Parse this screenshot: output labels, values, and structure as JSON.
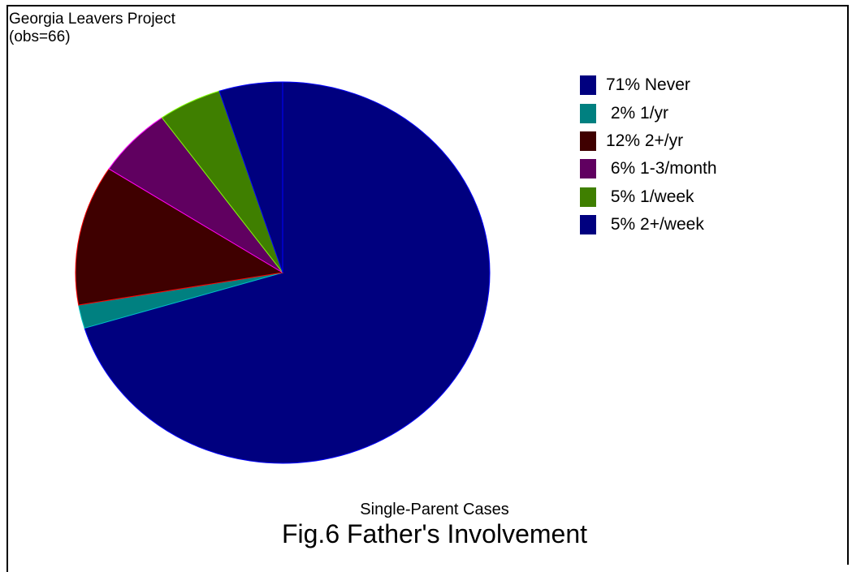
{
  "header": {
    "source": "Georgia Leavers Project",
    "obs": "(obs=66)"
  },
  "chart_data": {
    "type": "pie",
    "title": "Fig.6 Father's Involvement",
    "subtitle": "Single-Parent Cases",
    "slices": [
      {
        "label": "71% Never",
        "percent": 71,
        "color": "#00007f"
      },
      {
        "label": " 2% 1/yr",
        "percent": 2,
        "color": "#008080"
      },
      {
        "label": "12% 2+/yr",
        "percent": 12,
        "color": "#3f0000"
      },
      {
        "label": " 6% 1-3/month",
        "percent": 6,
        "color": "#600060"
      },
      {
        "label": " 5% 1/week",
        "percent": 5,
        "color": "#3f7f00"
      },
      {
        "label": " 5% 2+/week",
        "percent": 5,
        "color": "#00007f"
      }
    ],
    "slice_edge_colors": [
      "#0000ff",
      "#00c0c0",
      "#ff0000",
      "#ff00ff",
      "#80ff00",
      "#0000ff"
    ],
    "legend_position": "top-right"
  }
}
